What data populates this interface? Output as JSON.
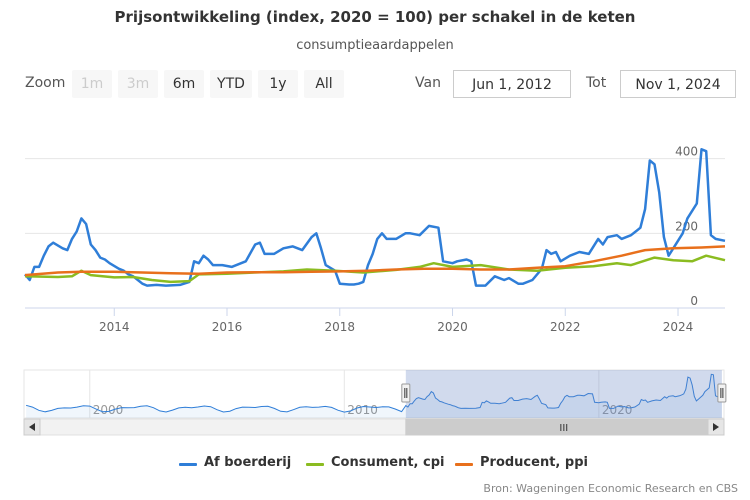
{
  "chart_data": {
    "type": "line",
    "title": "Prijsontwikkeling (index, 2020 = 100) per schakel in de keten",
    "subtitle": "consumptieaardappelen",
    "x_axis": {
      "range": [
        "2012-06-01",
        "2024-11-01"
      ],
      "ticks": [
        "2014",
        "2016",
        "2018",
        "2020",
        "2022",
        "2024"
      ]
    },
    "y_axis": {
      "range": [
        0,
        450
      ],
      "ticks": [
        "0",
        "200",
        "400"
      ],
      "position": "right"
    },
    "grid": true,
    "legend_position": "bottom",
    "series": [
      {
        "name": "Af boerderij",
        "color": "#2f7ed8",
        "points": [
          [
            "2012-06",
            90
          ],
          [
            "2012-07",
            75
          ],
          [
            "2012-08",
            110
          ],
          [
            "2012-09",
            110
          ],
          [
            "2012-10",
            140
          ],
          [
            "2012-11",
            165
          ],
          [
            "2012-12",
            175
          ],
          [
            "2013-02",
            160
          ],
          [
            "2013-03",
            155
          ],
          [
            "2013-04",
            185
          ],
          [
            "2013-05",
            205
          ],
          [
            "2013-06",
            240
          ],
          [
            "2013-07",
            225
          ],
          [
            "2013-08",
            170
          ],
          [
            "2013-09",
            155
          ],
          [
            "2013-10",
            135
          ],
          [
            "2013-11",
            130
          ],
          [
            "2013-12",
            120
          ],
          [
            "2014-02",
            105
          ],
          [
            "2014-03",
            100
          ],
          [
            "2014-04",
            90
          ],
          [
            "2014-05",
            85
          ],
          [
            "2014-06",
            75
          ],
          [
            "2014-07",
            65
          ],
          [
            "2014-08",
            60
          ],
          [
            "2014-10",
            62
          ],
          [
            "2014-12",
            60
          ],
          [
            "2015-03",
            62
          ],
          [
            "2015-05",
            70
          ],
          [
            "2015-06",
            125
          ],
          [
            "2015-07",
            120
          ],
          [
            "2015-08",
            140
          ],
          [
            "2015-09",
            130
          ],
          [
            "2015-10",
            115
          ],
          [
            "2015-12",
            115
          ],
          [
            "2016-02",
            110
          ],
          [
            "2016-03",
            115
          ],
          [
            "2016-05",
            125
          ],
          [
            "2016-07",
            170
          ],
          [
            "2016-08",
            175
          ],
          [
            "2016-09",
            145
          ],
          [
            "2016-11",
            145
          ],
          [
            "2017-01",
            160
          ],
          [
            "2017-03",
            165
          ],
          [
            "2017-05",
            155
          ],
          [
            "2017-07",
            190
          ],
          [
            "2017-08",
            200
          ],
          [
            "2017-09",
            160
          ],
          [
            "2017-10",
            115
          ],
          [
            "2017-12",
            100
          ],
          [
            "2018-01",
            65
          ],
          [
            "2018-03",
            63
          ],
          [
            "2018-04",
            63
          ],
          [
            "2018-05",
            65
          ],
          [
            "2018-06",
            70
          ],
          [
            "2018-07",
            115
          ],
          [
            "2018-08",
            145
          ],
          [
            "2018-09",
            185
          ],
          [
            "2018-10",
            200
          ],
          [
            "2018-11",
            185
          ],
          [
            "2019-01",
            185
          ],
          [
            "2019-03",
            200
          ],
          [
            "2019-04",
            200
          ],
          [
            "2019-06",
            195
          ],
          [
            "2019-08",
            220
          ],
          [
            "2019-10",
            215
          ],
          [
            "2019-11",
            125
          ],
          [
            "2020-01",
            120
          ],
          [
            "2020-02",
            125
          ],
          [
            "2020-04",
            130
          ],
          [
            "2020-05",
            125
          ],
          [
            "2020-06",
            60
          ],
          [
            "2020-08",
            60
          ],
          [
            "2020-10",
            85
          ],
          [
            "2020-12",
            75
          ],
          [
            "2021-01",
            80
          ],
          [
            "2021-03",
            65
          ],
          [
            "2021-04",
            65
          ],
          [
            "2021-06",
            75
          ],
          [
            "2021-08",
            105
          ],
          [
            "2021-09",
            155
          ],
          [
            "2021-10",
            145
          ],
          [
            "2021-11",
            150
          ],
          [
            "2021-12",
            125
          ],
          [
            "2022-02",
            140
          ],
          [
            "2022-04",
            150
          ],
          [
            "2022-06",
            145
          ],
          [
            "2022-08",
            185
          ],
          [
            "2022-09",
            170
          ],
          [
            "2022-10",
            190
          ],
          [
            "2022-12",
            195
          ],
          [
            "2023-01",
            185
          ],
          [
            "2023-03",
            195
          ],
          [
            "2023-04",
            205
          ],
          [
            "2023-05",
            215
          ],
          [
            "2023-06",
            265
          ],
          [
            "2023-07",
            395
          ],
          [
            "2023-08",
            385
          ],
          [
            "2023-09",
            310
          ],
          [
            "2023-10",
            190
          ],
          [
            "2023-11",
            140
          ],
          [
            "2023-12",
            160
          ],
          [
            "2024-02",
            200
          ],
          [
            "2024-03",
            240
          ],
          [
            "2024-05",
            280
          ],
          [
            "2024-06",
            425
          ],
          [
            "2024-07",
            420
          ],
          [
            "2024-08",
            195
          ],
          [
            "2024-09",
            185
          ],
          [
            "2024-11",
            180
          ]
        ]
      },
      {
        "name": "Consument, cpi",
        "color": "#8bbc21",
        "points": [
          [
            "2012-06",
            85
          ],
          [
            "2013-01",
            83
          ],
          [
            "2013-04",
            85
          ],
          [
            "2013-06",
            100
          ],
          [
            "2013-08",
            88
          ],
          [
            "2014-01",
            82
          ],
          [
            "2014-05",
            83
          ],
          [
            "2014-09",
            75
          ],
          [
            "2015-01",
            70
          ],
          [
            "2015-05",
            72
          ],
          [
            "2015-07",
            90
          ],
          [
            "2016-01",
            92
          ],
          [
            "2016-07",
            95
          ],
          [
            "2017-01",
            98
          ],
          [
            "2017-06",
            103
          ],
          [
            "2017-12",
            100
          ],
          [
            "2018-06",
            95
          ],
          [
            "2019-01",
            102
          ],
          [
            "2019-06",
            110
          ],
          [
            "2019-09",
            120
          ],
          [
            "2020-01",
            110
          ],
          [
            "2020-07",
            115
          ],
          [
            "2021-01",
            103
          ],
          [
            "2021-07",
            100
          ],
          [
            "2022-01",
            108
          ],
          [
            "2022-07",
            112
          ],
          [
            "2022-12",
            120
          ],
          [
            "2023-03",
            115
          ],
          [
            "2023-08",
            135
          ],
          [
            "2023-12",
            128
          ],
          [
            "2024-04",
            125
          ],
          [
            "2024-07",
            140
          ],
          [
            "2024-11",
            128
          ]
        ]
      },
      {
        "name": "Producent, ppi",
        "color": "#e8701c",
        "points": [
          [
            "2012-06",
            88
          ],
          [
            "2013-01",
            95
          ],
          [
            "2013-06",
            97
          ],
          [
            "2014-01",
            97
          ],
          [
            "2014-07",
            95
          ],
          [
            "2015-01",
            93
          ],
          [
            "2015-07",
            92
          ],
          [
            "2016-01",
            95
          ],
          [
            "2016-07",
            96
          ],
          [
            "2017-01",
            96
          ],
          [
            "2017-07",
            97
          ],
          [
            "2018-01",
            98
          ],
          [
            "2018-07",
            100
          ],
          [
            "2019-01",
            103
          ],
          [
            "2019-07",
            105
          ],
          [
            "2020-01",
            105
          ],
          [
            "2020-07",
            103
          ],
          [
            "2021-01",
            103
          ],
          [
            "2021-07",
            108
          ],
          [
            "2022-01",
            112
          ],
          [
            "2022-07",
            125
          ],
          [
            "2023-01",
            140
          ],
          [
            "2023-06",
            155
          ],
          [
            "2023-12",
            160
          ],
          [
            "2024-06",
            162
          ],
          [
            "2024-11",
            165
          ]
        ]
      }
    ]
  },
  "zoom": {
    "label": "Zoom",
    "buttons": [
      {
        "id": "1m",
        "label": "1m",
        "disabled": true
      },
      {
        "id": "3m",
        "label": "3m",
        "disabled": true
      },
      {
        "id": "6m",
        "label": "6m",
        "disabled": false
      },
      {
        "id": "ytd",
        "label": "YTD",
        "disabled": false
      },
      {
        "id": "1y",
        "label": "1y",
        "disabled": false
      },
      {
        "id": "all",
        "label": "All",
        "disabled": false
      }
    ]
  },
  "range": {
    "from_label": "Van",
    "from_value": "Jun 1, 2012",
    "to_label": "Tot",
    "to_value": "Nov 1, 2024"
  },
  "navigator": {
    "range": [
      "1997-06-01",
      "2024-12-01"
    ],
    "selected_range": [
      "2012-06-01",
      "2024-11-01"
    ],
    "ticks": [
      "2000",
      "2010",
      "2020"
    ],
    "scrollbar_grip": "III",
    "handle_grip": "II"
  },
  "credits": "Bron: Wageningen Economic Research en CBS"
}
